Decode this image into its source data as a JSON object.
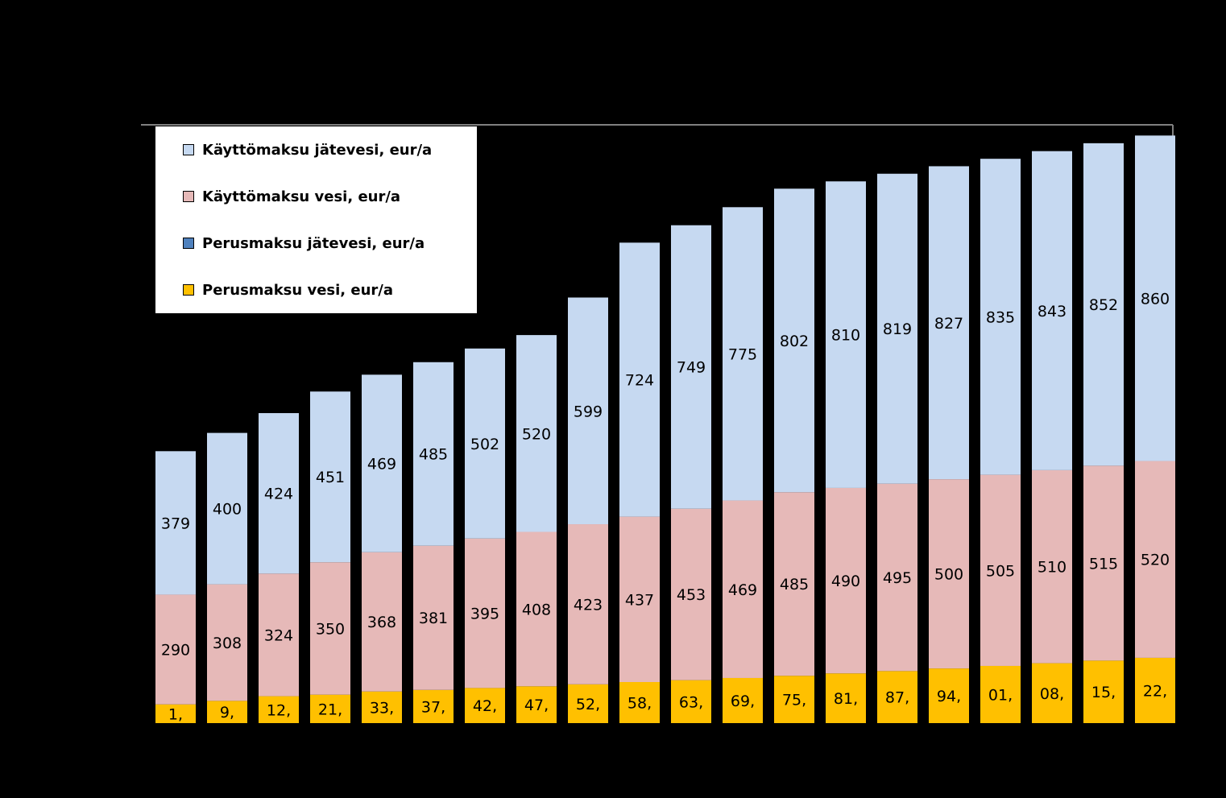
{
  "chart_data": {
    "type": "bar",
    "stacked": true,
    "title": "",
    "xlabel": "",
    "ylabel": "",
    "categories": [
      "",
      "",
      "",
      "",
      "",
      "",
      "",
      "",
      "",
      "",
      "",
      "",
      "",
      "",
      "",
      "",
      "",
      "",
      "",
      ""
    ],
    "series": [
      {
        "name": "Perusmaksu vesi, eur/a",
        "color": "#ffc000",
        "values": [
          49.5,
          58.8,
          71.1,
          75.1,
          83.6,
          87.7,
          92.8,
          97.3,
          102.5,
          108.5,
          113.5,
          119.2,
          125.1,
          131.4,
          137.6,
          144.4,
          151.1,
          158.3,
          165.2,
          172.5
        ],
        "labels": [
          "1,",
          "9,",
          "12,",
          "21,",
          "33,",
          "37,",
          "42,",
          "47,",
          "52,",
          "58,",
          "63,",
          "69,",
          "75,",
          "81,",
          "87,",
          "94,",
          "01,",
          "08,",
          "15,",
          "22,"
        ]
      },
      {
        "name": "Perusmaksu jätevesi, eur/a",
        "color": "#4f81bd",
        "values": [
          0,
          0,
          0,
          0,
          0,
          0,
          0,
          0,
          0,
          0,
          0,
          0,
          0,
          0,
          0,
          0,
          0,
          0,
          0,
          0
        ],
        "labels": []
      },
      {
        "name": "Käyttömaksu vesi, eur/a",
        "color": "#e6b9b8",
        "values": [
          290,
          308,
          324,
          350,
          368,
          381,
          395,
          408,
          423,
          437,
          453,
          469,
          485,
          490,
          495,
          500,
          505,
          510,
          515,
          520
        ],
        "labels": [
          "290",
          "308",
          "324",
          "350",
          "368",
          "381",
          "395",
          "408",
          "423",
          "437",
          "453",
          "469",
          "485",
          "490",
          "495",
          "500",
          "505",
          "510",
          "515",
          "520"
        ]
      },
      {
        "name": "Käyttömaksu jätevesi, eur/a",
        "color": "#c6d9f1",
        "values": [
          379,
          400,
          424,
          451,
          469,
          485,
          502,
          520,
          599,
          724,
          749,
          775,
          802,
          810,
          819,
          827,
          835,
          843,
          852,
          860
        ],
        "labels": [
          "379",
          "400",
          "424",
          "451",
          "469",
          "485",
          "502",
          "520",
          "599",
          "724",
          "749",
          "775",
          "802",
          "810",
          "819",
          "827",
          "835",
          "843",
          "852",
          "860"
        ]
      }
    ],
    "ylim": [
      0,
      1800
    ],
    "grid": false,
    "legend_position": "top-left",
    "legend_order": [
      "Käyttömaksu jätevesi, eur/a",
      "Käyttömaksu vesi, eur/a",
      "Perusmaksu jätevesi, eur/a",
      "Perusmaksu vesi, eur/a"
    ]
  }
}
